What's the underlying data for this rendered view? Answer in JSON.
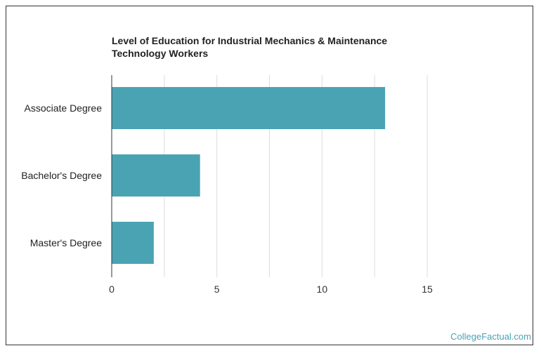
{
  "chart_data": {
    "type": "bar",
    "orientation": "horizontal",
    "title": "Level of Education for Industrial Mechanics & Maintenance Technology Workers",
    "categories": [
      "Associate Degree",
      "Bachelor's Degree",
      "Master's Degree"
    ],
    "values": [
      13,
      4.2,
      2
    ],
    "xlim": [
      0,
      15
    ],
    "xticks": [
      "0",
      "5",
      "10",
      "15"
    ],
    "xlabel": "",
    "ylabel": "",
    "grid": true,
    "bar_color": "#4aa3b3",
    "grid_color": "#dddddd"
  },
  "watermark": "CollegeFactual.com"
}
